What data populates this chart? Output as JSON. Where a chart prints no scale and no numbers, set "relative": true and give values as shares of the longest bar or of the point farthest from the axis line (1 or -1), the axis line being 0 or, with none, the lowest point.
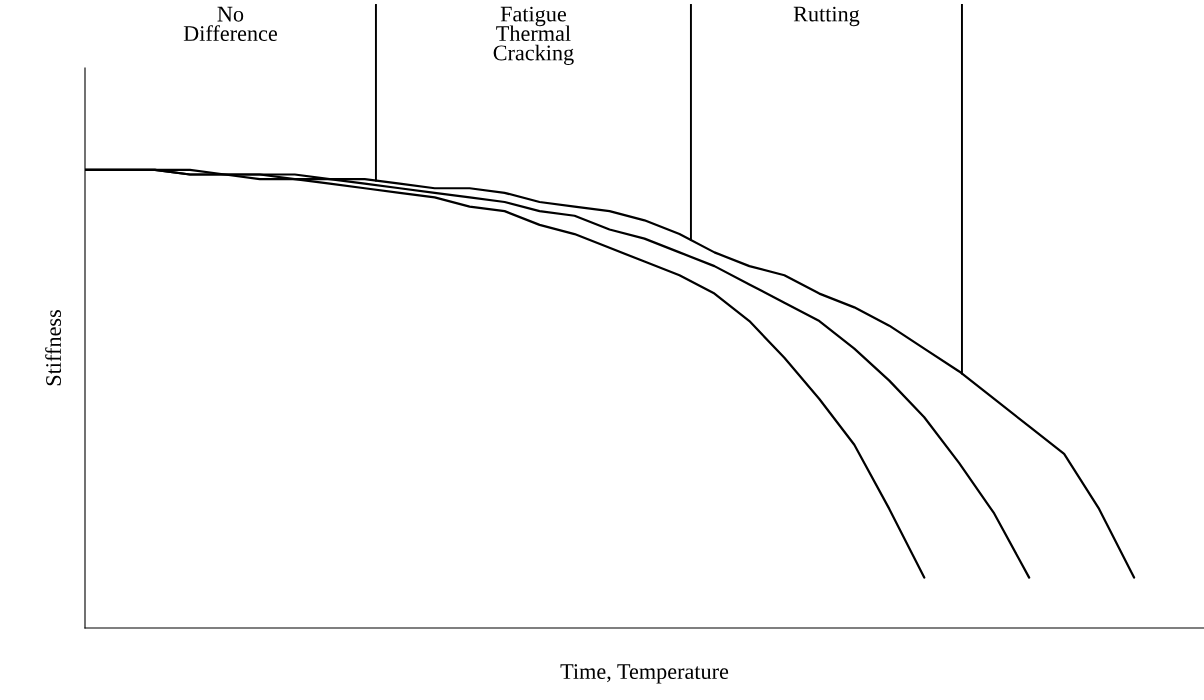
{
  "chart_data": {
    "type": "line",
    "relative": true,
    "xlabel": "Time, Temperature",
    "ylabel": "Stiffness",
    "categories": [
      null,
      null,
      null,
      null,
      null,
      null,
      null,
      null,
      null,
      null,
      null,
      null,
      null,
      null,
      null,
      null,
      null,
      null,
      null,
      null,
      null,
      null,
      null,
      null,
      null,
      null,
      null,
      null,
      null,
      null,
      null,
      null,
      null
    ],
    "series": [
      {
        "color": "#000000",
        "values": [
          1.0,
          1.0,
          1.0,
          0.99,
          0.99,
          0.98,
          0.98,
          0.97,
          0.96,
          0.95,
          0.94,
          0.92,
          0.91,
          0.88,
          0.86,
          0.83,
          0.8,
          0.77,
          0.73,
          0.67,
          0.59,
          0.5,
          0.4,
          0.26,
          0.11,
          null,
          null,
          null,
          null,
          null,
          null,
          null,
          null
        ]
      },
      {
        "color": "#000000",
        "values": [
          1.0,
          1.0,
          1.0,
          0.99,
          0.99,
          0.99,
          0.98,
          0.98,
          0.97,
          0.96,
          0.95,
          0.94,
          0.93,
          0.91,
          0.9,
          0.87,
          0.85,
          0.82,
          0.79,
          0.75,
          0.71,
          0.67,
          0.61,
          0.54,
          0.46,
          0.36,
          0.25,
          0.11,
          null,
          null,
          null,
          null,
          null
        ]
      },
      {
        "color": "#000000",
        "values": [
          1.0,
          1.0,
          1.0,
          1.0,
          0.99,
          0.99,
          0.99,
          0.98,
          0.98,
          0.97,
          0.96,
          0.96,
          0.95,
          0.93,
          0.92,
          0.91,
          0.89,
          0.86,
          0.82,
          0.79,
          0.77,
          0.73,
          0.7,
          0.66,
          0.61,
          0.56,
          0.5,
          0.44,
          0.38,
          0.26,
          0.11,
          null,
          null
        ]
      }
    ],
    "annotations": [
      "No\nDifference",
      "Fatigue\nThermal\nCracking",
      "Rutting"
    ],
    "grid": false,
    "legend": false,
    "marker": "none",
    "line_style": "solid"
  }
}
